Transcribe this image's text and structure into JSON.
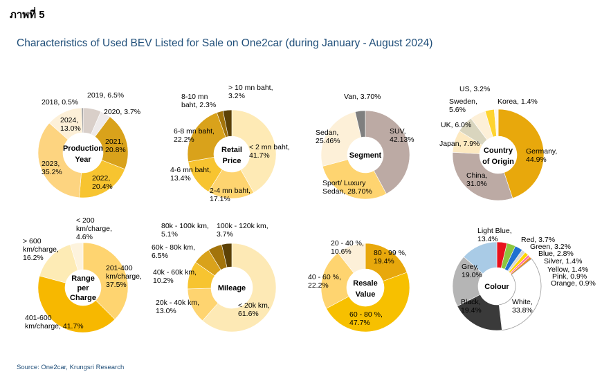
{
  "figure_label": "ภาพที่ 5",
  "title": "Characteristics of Used BEV Listed for Sale on One2car (during January - August 2024)",
  "source": "Source: One2car, Krungsri Research",
  "chart_data": [
    {
      "type": "pie",
      "center_label": "Production Year",
      "slices": [
        {
          "name": "2019",
          "value": 6.5,
          "label": "2019, 6.5%",
          "color": "#d9cfc9"
        },
        {
          "name": "2020",
          "value": 3.7,
          "label": "2020, 3.7%",
          "color": "#eeeaea"
        },
        {
          "name": "2021",
          "value": 20.8,
          "label": "2021, 20.8%",
          "color": "#d9a21b"
        },
        {
          "name": "2022",
          "value": 20.4,
          "label": "2022, 20.4%",
          "color": "#f7c430"
        },
        {
          "name": "2023",
          "value": 35.2,
          "label": "2023, 35.2%",
          "color": "#fdd480"
        },
        {
          "name": "2024",
          "value": 13.0,
          "label": "2024, 13.0%",
          "color": "#fdf0d8"
        },
        {
          "name": "2018",
          "value": 0.5,
          "label": "2018, 0.5%",
          "color": "#7f7f7f"
        }
      ]
    },
    {
      "type": "pie",
      "center_label": "Retail Price",
      "slices": [
        {
          "name": "< 2 mn baht",
          "value": 41.7,
          "label": "< 2 mn baht, 41.7%",
          "color": "#feeab5"
        },
        {
          "name": "2-4 mn baht",
          "value": 17.1,
          "label": "2-4 mn baht, 17.1%",
          "color": "#fed470"
        },
        {
          "name": "4-6 mn baht",
          "value": 13.4,
          "label": "4-6 mn baht, 13.4%",
          "color": "#f7c430"
        },
        {
          "name": "6-8 mn baht",
          "value": 22.2,
          "label": "6-8 mn baht, 22.2%",
          "color": "#d9a21b"
        },
        {
          "name": "8-10 mn baht",
          "value": 2.3,
          "label": "8-10 mn baht, 2.3%",
          "color": "#a3740b"
        },
        {
          "name": "> 10 mn baht",
          "value": 3.2,
          "label": "> 10 mn baht, 3.2%",
          "color": "#5c4106"
        }
      ]
    },
    {
      "type": "pie",
      "center_label": "Segment",
      "slices": [
        {
          "name": "SUV",
          "value": 42.13,
          "label": "SUV, 42.13%",
          "color": "#bcaaa4"
        },
        {
          "name": "Sport/ Luxury Sedan",
          "value": 28.7,
          "label": "Sport/ Luxury Sedan, 28.70%",
          "color": "#fed470"
        },
        {
          "name": "Sedan",
          "value": 25.46,
          "label": "Sedan, 25.46%",
          "color": "#fdf0d8"
        },
        {
          "name": "Van",
          "value": 3.7,
          "label": "Van, 3.70%",
          "color": "#7f7f7f"
        }
      ]
    },
    {
      "type": "pie",
      "center_label": "Country of Origin",
      "slices": [
        {
          "name": "Germany",
          "value": 44.9,
          "label": "Germany, 44.9%",
          "color": "#e8a80c"
        },
        {
          "name": "China",
          "value": 31.0,
          "label": "China, 31.0%",
          "color": "#bcaaa4"
        },
        {
          "name": "Japan",
          "value": 7.9,
          "label": "Japan, 7.9%",
          "color": "#fde9c0"
        },
        {
          "name": "UK",
          "value": 6.0,
          "label": "UK, 6.0%",
          "color": "#d9d5be"
        },
        {
          "name": "Sweden",
          "value": 5.6,
          "label": "Sweden, 5.6%",
          "color": "#fdf0d8"
        },
        {
          "name": "US",
          "value": 3.2,
          "label": "US, 3.2%",
          "color": "#fed430"
        },
        {
          "name": "Korea",
          "value": 1.4,
          "label": "Korea, 1.4%",
          "color": "#fdf6ea"
        }
      ]
    },
    {
      "type": "pie",
      "center_label": "Range per Charge",
      "slices": [
        {
          "name": "201-400 km/charge",
          "value": 37.5,
          "label": "201-400 km/charge, 37.5%",
          "color": "#fed470"
        },
        {
          "name": "401-600 km/charge",
          "value": 41.7,
          "label": "401-600 km/charge, 41.7%",
          "color": "#f7b800"
        },
        {
          "name": "> 600 km/charge",
          "value": 16.2,
          "label": "> 600 km/charge, 16.2%",
          "color": "#fdebb5"
        },
        {
          "name": "< 200 km/charge",
          "value": 4.6,
          "label": "< 200 km/charge, 4.6%",
          "color": "#fdf3dd"
        }
      ]
    },
    {
      "type": "pie",
      "center_label": "Mileage",
      "slices": [
        {
          "name": "< 20k km",
          "value": 61.6,
          "label": "< 20k km, 61.6%",
          "color": "#fde9b5"
        },
        {
          "name": "20k - 40k km",
          "value": 13.0,
          "label": "20k - 40k km, 13.0%",
          "color": "#fed470"
        },
        {
          "name": "40k - 60k km",
          "value": 10.2,
          "label": "40k - 60k km, 10.2%",
          "color": "#f7c430"
        },
        {
          "name": "60k - 80k km",
          "value": 6.5,
          "label": "60k - 80k km, 6.5%",
          "color": "#d9a21b"
        },
        {
          "name": "80k - 100k km",
          "value": 5.1,
          "label": "80k - 100k km, 5.1%",
          "color": "#a3740b"
        },
        {
          "name": "100k - 120k km",
          "value": 3.7,
          "label": "100k - 120k km, 3.7%",
          "color": "#5c4106"
        }
      ]
    },
    {
      "type": "pie",
      "center_label": "Resale Value",
      "slices": [
        {
          "name": "80 - 99 %",
          "value": 19.4,
          "label": "80 - 99 %, 19.4%",
          "color": "#e8a80c"
        },
        {
          "name": "60 - 80 %",
          "value": 47.7,
          "label": "60 - 80 %, 47.7%",
          "color": "#f7c000"
        },
        {
          "name": "40 - 60 %",
          "value": 22.2,
          "label": "40 - 60 %, 22.2%",
          "color": "#fed470"
        },
        {
          "name": "20 - 40 %",
          "value": 10.6,
          "label": "20 - 40 %, 10.6%",
          "color": "#fdf0d8"
        }
      ]
    },
    {
      "type": "pie",
      "center_label": "Colour",
      "slices": [
        {
          "name": "Red",
          "value": 3.7,
          "label": "Red, 3.7%",
          "color": "#e8121d"
        },
        {
          "name": "Green",
          "value": 3.2,
          "label": "Green, 3.2%",
          "color": "#8cc63f"
        },
        {
          "name": "Blue",
          "value": 2.8,
          "label": "Blue, 2.8%",
          "color": "#1f6fd1"
        },
        {
          "name": "Silver",
          "value": 1.4,
          "label": "Silver, 1.4%",
          "color": "#d6d6d6"
        },
        {
          "name": "Yellow",
          "value": 1.4,
          "label": "Yellow, 1.4%",
          "color": "#ffd400"
        },
        {
          "name": "Pink",
          "value": 0.9,
          "label": "Pink, 0.9%",
          "color": "#ff6fa8"
        },
        {
          "name": "Orange",
          "value": 0.9,
          "label": "Orange, 0.9%",
          "color": "#f28c1e"
        },
        {
          "name": "White",
          "value": 33.8,
          "label": "White, 33.8%",
          "color": "#ffffff"
        },
        {
          "name": "Black",
          "value": 19.4,
          "label": "Black, 19.4%",
          "color": "#3a3a3a"
        },
        {
          "name": "Grey",
          "value": 19.0,
          "label": "Grey, 19.0%",
          "color": "#b5b5b5"
        },
        {
          "name": "Light Blue",
          "value": 13.4,
          "label": "Light Blue, 13.4%",
          "color": "#a9cbe6"
        }
      ]
    }
  ]
}
